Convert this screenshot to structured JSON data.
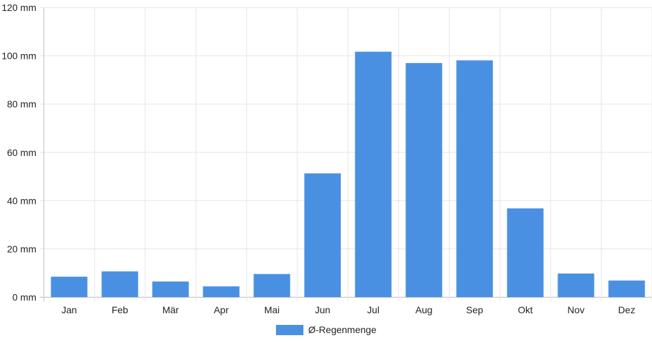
{
  "chart_data": {
    "type": "bar",
    "categories": [
      "Jan",
      "Feb",
      "Mär",
      "Apr",
      "Mai",
      "Jun",
      "Jul",
      "Aug",
      "Sep",
      "Okt",
      "Nov",
      "Dez"
    ],
    "series": [
      {
        "name": "Ø-Regenmenge",
        "values": [
          8.5,
          10.7,
          6.5,
          4.5,
          9.6,
          51.3,
          101.7,
          97.0,
          98.1,
          36.8,
          9.8,
          6.9
        ],
        "color": "#4a90e2"
      }
    ],
    "y_ticks": [
      "0 mm",
      "20 mm",
      "40 mm",
      "60 mm",
      "80 mm",
      "100 mm",
      "120 mm"
    ],
    "ylim": [
      0,
      120
    ],
    "unit": "mm",
    "grid": true,
    "legend_position": "bottom-center"
  }
}
